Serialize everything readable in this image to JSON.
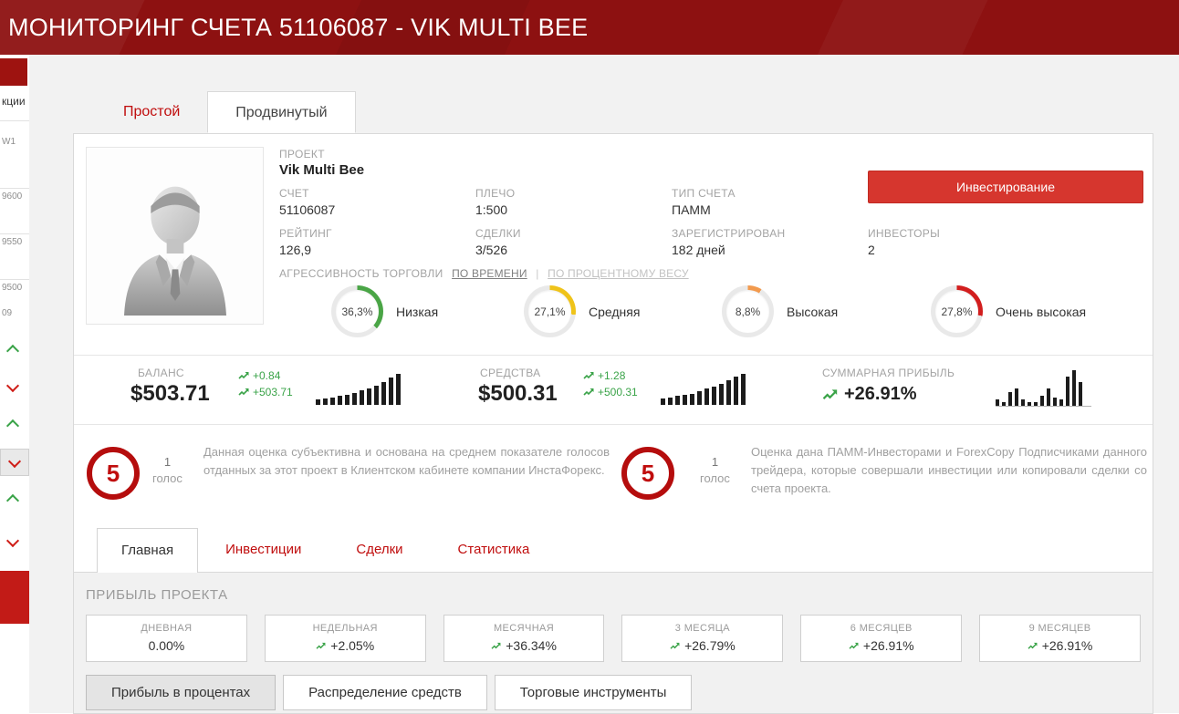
{
  "header": {
    "title": "МОНИТОРИНГ СЧЕТА 51106087 - VIK MULTI BEE"
  },
  "sidebar": {
    "fragments": {
      "f1": "кции",
      "f2": "W1",
      "f3": "9600",
      "f4": "9550",
      "f5": "9500",
      "f6": "09"
    }
  },
  "view_tabs": {
    "simple": "Простой",
    "advanced": "Продвинутый"
  },
  "project": {
    "project_label": "ПРОЕКТ",
    "name": "Vik Multi Bee",
    "fields": [
      {
        "label": "СЧЕТ",
        "value": "51106087"
      },
      {
        "label": "ПЛЕЧО",
        "value": "1:500"
      },
      {
        "label": "ТИП СЧЕТА",
        "value": "ПАММ"
      },
      {
        "label": "РЕЙТИНГ",
        "value": "126,9"
      },
      {
        "label": "СДЕЛКИ",
        "value": "3/526"
      },
      {
        "label": "ЗАРЕГИСТРИРОВАН",
        "value": "182 дней"
      },
      {
        "label": "ИНВЕСТОРЫ",
        "value": "2"
      }
    ],
    "invest_button": "Инвестирование",
    "aggressiveness": {
      "label": "АГРЕССИВНОСТЬ ТОРГОВЛИ",
      "by_time": "ПО ВРЕМЕНИ",
      "separator": "|",
      "by_weight": "ПО ПРОЦЕНТНОМУ ВЕСУ",
      "gauges": [
        {
          "value": "36,3%",
          "label": "Низкая",
          "percent": 36.3,
          "color": "#4aa546"
        },
        {
          "value": "27,1%",
          "label": "Средняя",
          "percent": 27.1,
          "color": "#efc319"
        },
        {
          "value": "8,8%",
          "label": "Высокая",
          "percent": 8.8,
          "color": "#f29a4e"
        },
        {
          "value": "27,8%",
          "label": "Очень высокая",
          "percent": 27.8,
          "color": "#d21e1e"
        }
      ]
    }
  },
  "stats": {
    "balance": {
      "label": "БАЛАНС",
      "value": "$503.71",
      "delta_abs": "+0.84",
      "delta_total": "+503.71",
      "spark": [
        4,
        5,
        6,
        7,
        8,
        9,
        11,
        13,
        15,
        18,
        21,
        24
      ]
    },
    "equity": {
      "label": "СРЕДСТВА",
      "value": "$500.31",
      "delta_abs": "+1.28",
      "delta_total": "+500.31",
      "spark": [
        5,
        6,
        7,
        8,
        9,
        11,
        13,
        15,
        17,
        20,
        23,
        25
      ]
    },
    "profit": {
      "label": "СУММАРНАЯ ПРИБЫЛЬ",
      "value": "+26.91%",
      "spark": [
        3,
        2,
        7,
        9,
        3,
        2,
        2,
        5,
        9,
        4,
        3,
        15,
        18,
        12
      ]
    }
  },
  "votes": [
    {
      "score": "5",
      "count": "1",
      "count_label": "голос",
      "text": "Данная оценка субъективна и основана на среднем показателе голосов отданных за этот проект в Клиентском кабинете компании ИнстаФорекс."
    },
    {
      "score": "5",
      "count": "1",
      "count_label": "голос",
      "text": "Оценка дана ПАММ-Инвесторами и ForexCopy Подписчиками данного трейдера, которые совершали инвестиции или копировали сделки со счета проекта."
    }
  ],
  "section_tabs": [
    {
      "label": "Главная"
    },
    {
      "label": "Инвестиции"
    },
    {
      "label": "Сделки"
    },
    {
      "label": "Статистика"
    }
  ],
  "profit_section": {
    "title": "ПРИБЫЛЬ ПРОЕКТА",
    "periods": [
      {
        "label": "ДНЕВНАЯ",
        "value": "0.00%",
        "up": false
      },
      {
        "label": "НЕДЕЛЬНАЯ",
        "value": "+2.05%",
        "up": true
      },
      {
        "label": "МЕСЯЧНАЯ",
        "value": "+36.34%",
        "up": true
      },
      {
        "label": "3 МЕСЯЦА",
        "value": "+26.79%",
        "up": true
      },
      {
        "label": "6 МЕСЯЦЕВ",
        "value": "+26.91%",
        "up": true
      },
      {
        "label": "9 МЕСЯЦЕВ",
        "value": "+26.91%",
        "up": true
      }
    ],
    "chart_tabs": [
      {
        "label": "Прибыль в процентах",
        "active": true
      },
      {
        "label": "Распределение средств",
        "active": false
      },
      {
        "label": "Торговые инструменты",
        "active": false
      }
    ]
  },
  "colors": {
    "accent_red": "#c00d0d",
    "green": "#3aa348",
    "header_red": "#8d1111"
  }
}
